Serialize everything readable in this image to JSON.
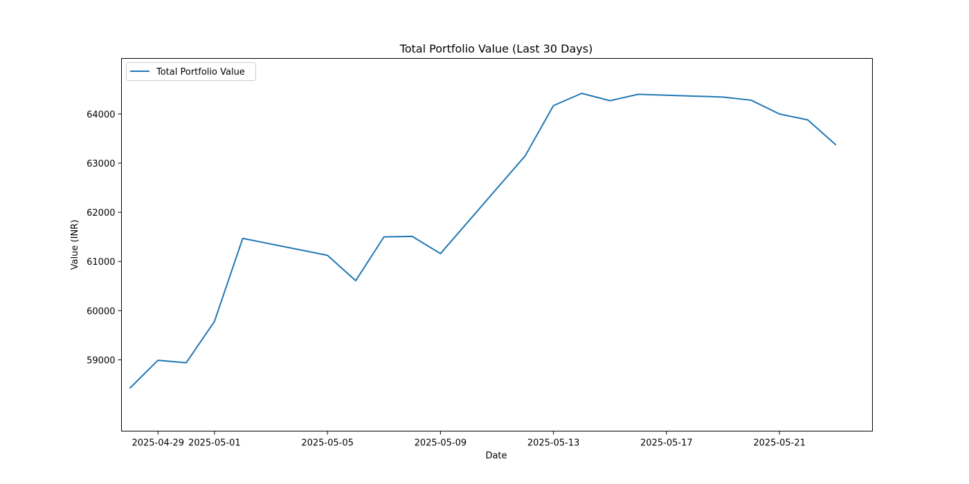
{
  "chart_data": {
    "type": "line",
    "title": "Total Portfolio Value (Last 30 Days)",
    "xlabel": "Date",
    "ylabel": "Value (INR)",
    "x": [
      "2025-04-28",
      "2025-04-29",
      "2025-04-30",
      "2025-05-01",
      "2025-05-02",
      "2025-05-05",
      "2025-05-06",
      "2025-05-07",
      "2025-05-08",
      "2025-05-09",
      "2025-05-12",
      "2025-05-13",
      "2025-05-14",
      "2025-05-15",
      "2025-05-16",
      "2025-05-19",
      "2025-05-20",
      "2025-05-21",
      "2025-05-22",
      "2025-05-23"
    ],
    "series": [
      {
        "name": "Total Portfolio Value",
        "color": "#1f77b4",
        "values": [
          58420,
          58990,
          58940,
          59780,
          61470,
          61125,
          60610,
          61500,
          61510,
          61160,
          63150,
          64170,
          64420,
          64270,
          64400,
          64345,
          64280,
          64000,
          63880,
          63370
        ]
      }
    ],
    "x_ticks": [
      "2025-04-29",
      "2025-05-01",
      "2025-05-05",
      "2025-05-09",
      "2025-05-13",
      "2025-05-17",
      "2025-05-21"
    ],
    "y_ticks": [
      59000,
      60000,
      61000,
      62000,
      63000,
      64000
    ],
    "xlim": [
      "2025-04-27 17:00",
      "2025-05-24 07:00"
    ],
    "ylim": [
      57550,
      65130
    ],
    "grid": false,
    "legend": "upper-left"
  }
}
